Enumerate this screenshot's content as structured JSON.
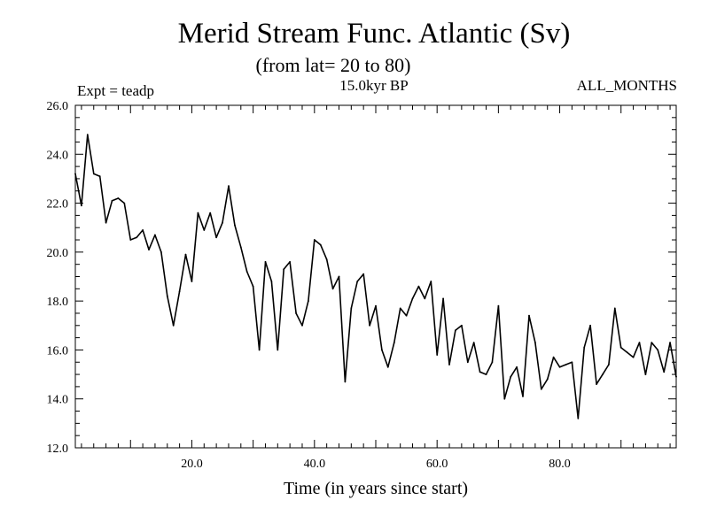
{
  "chart_data": {
    "type": "line",
    "title": "Merid Stream Func. Atlantic (Sv)",
    "subtitle": "(from lat= 20 to 80)",
    "top_left_label": "Expt = teadp",
    "top_center_label": "15.0kyr BP",
    "top_right_label": "ALL_MONTHS",
    "xlabel": "Time (in years since start)",
    "ylabel": "",
    "xlim": [
      1,
      99
    ],
    "ylim": [
      12.0,
      26.0
    ],
    "x_ticks": [
      20,
      40,
      60,
      80
    ],
    "x_tick_labels": [
      "20.0",
      "40.0",
      "60.0",
      "80.0"
    ],
    "y_ticks": [
      12,
      14,
      16,
      18,
      20,
      22,
      24,
      26
    ],
    "y_tick_labels": [
      "12.0",
      "14.0",
      "16.0",
      "18.0",
      "20.0",
      "22.0",
      "24.0",
      "26.0"
    ],
    "grid": false,
    "series": [
      {
        "name": "teadp",
        "x": [
          1,
          2,
          3,
          4,
          5,
          6,
          7,
          8,
          9,
          10,
          11,
          12,
          13,
          14,
          15,
          16,
          17,
          18,
          19,
          20,
          21,
          22,
          23,
          24,
          25,
          26,
          27,
          28,
          29,
          30,
          31,
          32,
          33,
          34,
          35,
          36,
          37,
          38,
          39,
          40,
          41,
          42,
          43,
          44,
          45,
          46,
          47,
          48,
          49,
          50,
          51,
          52,
          53,
          54,
          55,
          56,
          57,
          58,
          59,
          60,
          61,
          62,
          63,
          64,
          65,
          66,
          67,
          68,
          69,
          70,
          71,
          72,
          73,
          74,
          75,
          76,
          77,
          78,
          79,
          80,
          81,
          82,
          83,
          84,
          85,
          86,
          87,
          88,
          89,
          90,
          91,
          92,
          93,
          94,
          95,
          96,
          97,
          98,
          99
        ],
        "values": [
          23.2,
          21.9,
          24.8,
          23.2,
          23.1,
          21.2,
          22.1,
          22.2,
          22.0,
          20.5,
          20.6,
          20.9,
          20.1,
          20.7,
          20.0,
          18.2,
          17.0,
          18.4,
          19.9,
          18.8,
          21.6,
          20.9,
          21.6,
          20.6,
          21.2,
          22.7,
          21.1,
          20.2,
          19.2,
          18.6,
          16.0,
          19.6,
          18.8,
          16.0,
          19.3,
          19.6,
          17.5,
          17.0,
          18.0,
          20.5,
          20.3,
          19.7,
          18.5,
          19.0,
          14.7,
          17.7,
          18.8,
          19.1,
          17.0,
          17.8,
          16.0,
          15.3,
          16.3,
          17.7,
          17.4,
          18.1,
          18.6,
          18.1,
          18.8,
          15.8,
          18.1,
          15.4,
          16.8,
          17.0,
          15.5,
          16.3,
          15.1,
          15.0,
          15.5,
          17.8,
          14.0,
          14.9,
          15.3,
          14.1,
          17.4,
          16.3,
          14.4,
          14.8,
          15.7,
          15.3,
          15.4,
          15.5,
          13.2,
          16.1,
          17.0,
          14.6,
          15.0,
          15.4,
          17.7,
          16.1,
          15.9,
          15.7,
          16.3,
          15.0,
          16.3,
          16.0,
          15.1,
          16.3,
          14.9
        ]
      }
    ]
  }
}
